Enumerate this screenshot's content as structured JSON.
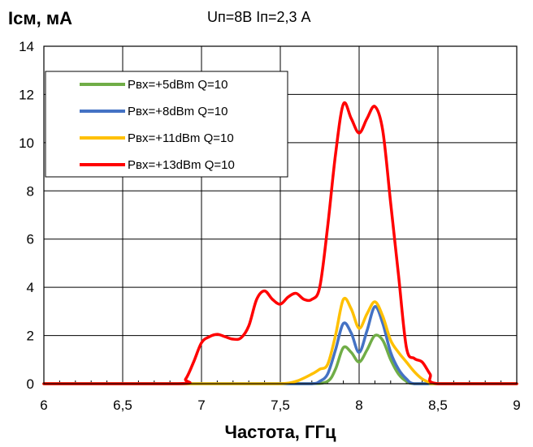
{
  "chart_data": {
    "type": "line",
    "title": "Uп=8В Iп=2,3 А",
    "ylabel": "Iсм, мА",
    "xlabel": "Частота, ГГц",
    "xlim": [
      6,
      9
    ],
    "ylim": [
      0,
      14
    ],
    "x_ticks": [
      6,
      6.5,
      7,
      7.5,
      8,
      8.5,
      9
    ],
    "x_tick_labels": [
      "6",
      "6,5",
      "7",
      "7,5",
      "8",
      "8,5",
      "9"
    ],
    "y_ticks": [
      0,
      2,
      4,
      6,
      8,
      10,
      12,
      14
    ],
    "y_tick_labels": [
      "0",
      "2",
      "4",
      "6",
      "8",
      "10",
      "12",
      "14"
    ],
    "grid": true,
    "legend_position": "top-left",
    "series": [
      {
        "name": "Pвх=+5dBm Q=10",
        "color": "#70ad47",
        "x": [
          6.0,
          7.5,
          7.7,
          7.8,
          7.85,
          7.9,
          7.95,
          8.0,
          8.05,
          8.1,
          8.15,
          8.2,
          8.25,
          8.3,
          8.35,
          8.5,
          9.0
        ],
        "y": [
          0,
          0,
          0,
          0.1,
          0.6,
          1.5,
          1.3,
          0.9,
          1.4,
          2.0,
          1.8,
          1.0,
          0.4,
          0.1,
          0,
          0,
          0
        ]
      },
      {
        "name": "Pвх=+8dBm Q=10",
        "color": "#4472c4",
        "x": [
          6.0,
          7.5,
          7.7,
          7.75,
          7.8,
          7.85,
          7.9,
          7.95,
          8.0,
          8.05,
          8.1,
          8.15,
          8.2,
          8.25,
          8.3,
          8.35,
          8.5,
          9.0
        ],
        "y": [
          0,
          0,
          0,
          0.1,
          0.4,
          1.4,
          2.5,
          2.1,
          1.3,
          2.2,
          3.2,
          2.5,
          1.3,
          0.6,
          0.2,
          0,
          0,
          0
        ]
      },
      {
        "name": "Pвх=+11dBm Q=10",
        "color": "#ffc000",
        "x": [
          6.0,
          7.3,
          7.5,
          7.6,
          7.7,
          7.75,
          7.8,
          7.85,
          7.9,
          7.95,
          8.0,
          8.05,
          8.1,
          8.15,
          8.2,
          8.25,
          8.3,
          8.35,
          8.4,
          8.45,
          8.5,
          9.0
        ],
        "y": [
          0,
          0,
          0,
          0.1,
          0.4,
          0.6,
          0.8,
          2.0,
          3.5,
          3.1,
          2.3,
          2.9,
          3.4,
          2.8,
          1.8,
          1.3,
          0.9,
          0.5,
          0.2,
          0.05,
          0,
          0
        ]
      },
      {
        "name": "Pвх=+13dBm Q=10",
        "color": "#ff0000",
        "x": [
          6.0,
          6.85,
          6.9,
          6.95,
          7.0,
          7.05,
          7.1,
          7.15,
          7.2,
          7.25,
          7.3,
          7.35,
          7.4,
          7.45,
          7.5,
          7.55,
          7.6,
          7.65,
          7.7,
          7.75,
          7.8,
          7.85,
          7.9,
          7.95,
          8.0,
          8.05,
          8.1,
          8.15,
          8.2,
          8.25,
          8.3,
          8.35,
          8.4,
          8.45,
          8.5,
          9.0
        ],
        "y": [
          0,
          0,
          0.2,
          0.9,
          1.7,
          1.95,
          2.05,
          1.95,
          1.85,
          1.9,
          2.4,
          3.5,
          3.85,
          3.5,
          3.3,
          3.6,
          3.75,
          3.5,
          3.5,
          4.0,
          6.5,
          9.5,
          11.6,
          11.0,
          10.4,
          11.0,
          11.5,
          10.5,
          7.5,
          4.5,
          1.5,
          1.05,
          0.9,
          0.4,
          0,
          0
        ]
      }
    ]
  }
}
